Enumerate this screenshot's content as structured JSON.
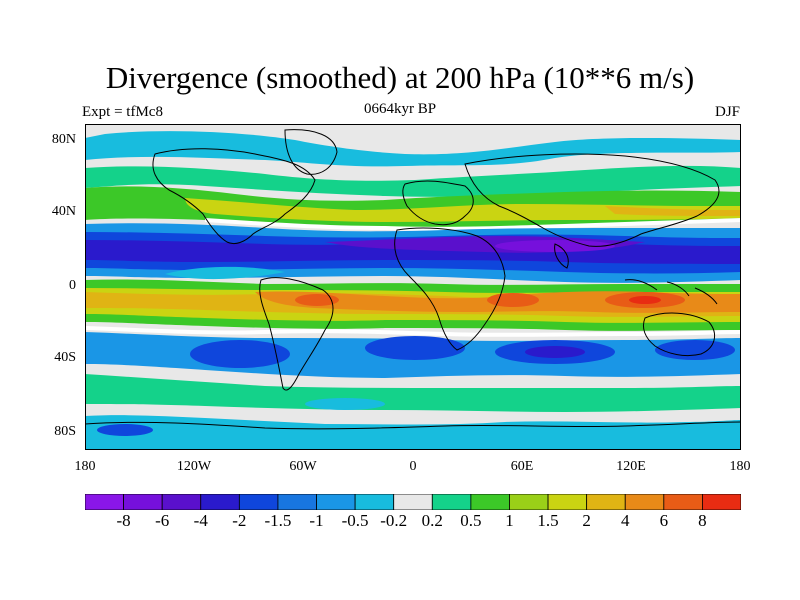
{
  "figure": {
    "title": "Divergence (smoothed) at 200 hPa (10**6 m/s)",
    "left_label": "Expt = tfMc8",
    "center_label": "0664kyr BP",
    "right_label": "DJF"
  },
  "axes": {
    "y_ticks": [
      "80N",
      "40N",
      "0",
      "40S",
      "80S"
    ],
    "x_ticks": [
      "180",
      "120W",
      "60W",
      "0",
      "60E",
      "120E",
      "180"
    ]
  },
  "colorbar": {
    "colors": [
      "#8a16e8",
      "#7610dc",
      "#5a10cc",
      "#2a1acc",
      "#0f46dc",
      "#1876e0",
      "#1a96e6",
      "#18bcde",
      "#e8e8e8",
      "#14d28a",
      "#3cc828",
      "#9ad018",
      "#cad412",
      "#e0b414",
      "#e88a18",
      "#e85c16",
      "#e82c12"
    ],
    "labels": [
      "-8",
      "-6",
      "-4",
      "-2",
      "-1.5",
      "-1",
      "-0.5",
      "-0.2",
      "0.2",
      "0.5",
      "1",
      "1.5",
      "2",
      "4",
      "6",
      "8"
    ]
  }
}
